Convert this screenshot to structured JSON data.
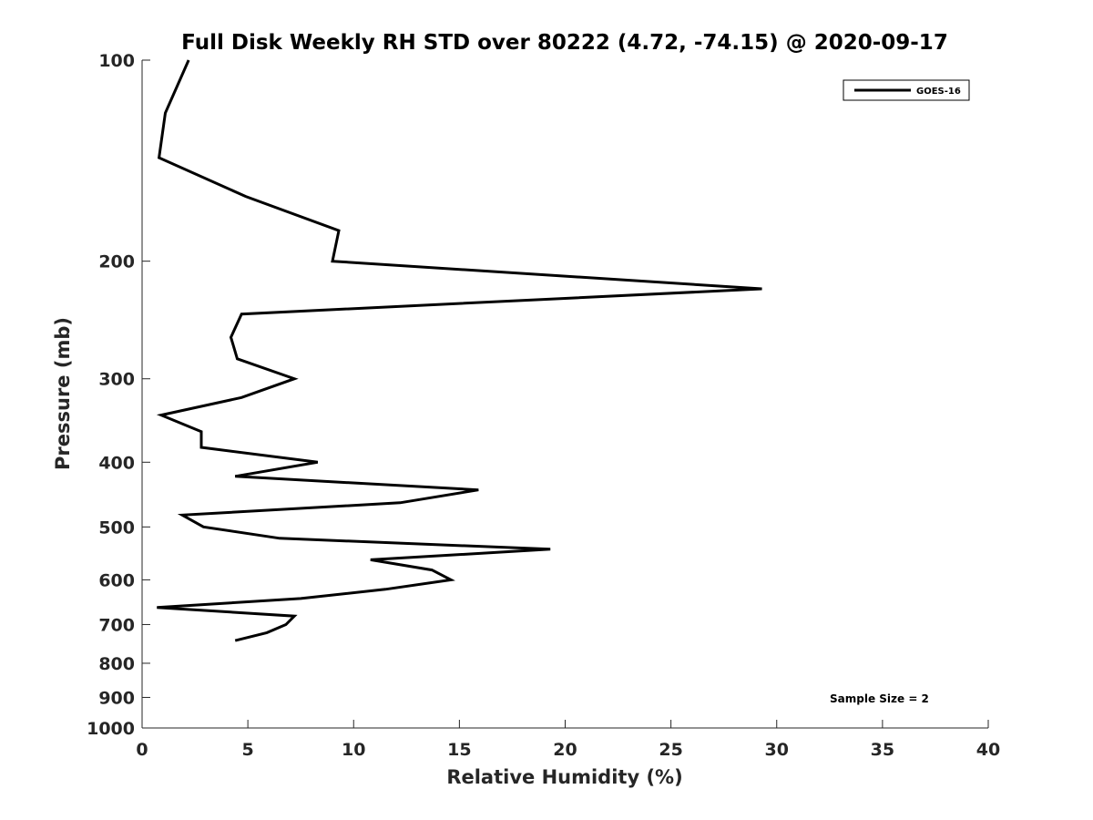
{
  "chart_data": {
    "type": "line",
    "title": "Full Disk Weekly RH STD over 80222 (4.72, -74.15) @ 2020-09-17",
    "xlabel": "Relative Humidity (%)",
    "ylabel": "Pressure (mb)",
    "xlim": [
      0,
      40
    ],
    "ylim": [
      100,
      1000
    ],
    "yscale": "log",
    "xticks": [
      "0",
      "5",
      "10",
      "15",
      "20",
      "25",
      "30",
      "35",
      "40"
    ],
    "yticks": [
      "100",
      "200",
      "300",
      "400",
      "500",
      "600",
      "700",
      "800",
      "900",
      "1000"
    ],
    "legend_position": "top-right",
    "annotation": "Sample Size = 2",
    "series": [
      {
        "name": "GOES-16",
        "color": "#000000",
        "points": [
          [
            2.2,
            100
          ],
          [
            1.1,
            120
          ],
          [
            0.8,
            140
          ],
          [
            4.9,
            160
          ],
          [
            9.3,
            180
          ],
          [
            9.0,
            200
          ],
          [
            29.3,
            220
          ],
          [
            4.7,
            240
          ],
          [
            4.2,
            260
          ],
          [
            4.5,
            280
          ],
          [
            7.2,
            300
          ],
          [
            4.7,
            320
          ],
          [
            0.9,
            340
          ],
          [
            2.8,
            360
          ],
          [
            2.8,
            380
          ],
          [
            8.3,
            400
          ],
          [
            4.4,
            420
          ],
          [
            15.9,
            440
          ],
          [
            12.2,
            460
          ],
          [
            1.9,
            480
          ],
          [
            2.9,
            500
          ],
          [
            6.5,
            520
          ],
          [
            19.3,
            540
          ],
          [
            10.8,
            560
          ],
          [
            13.7,
            580
          ],
          [
            14.6,
            600
          ],
          [
            11.5,
            620
          ],
          [
            7.5,
            640
          ],
          [
            0.7,
            660
          ],
          [
            7.2,
            680
          ],
          [
            6.8,
            700
          ],
          [
            5.9,
            720
          ],
          [
            4.4,
            740
          ]
        ]
      }
    ]
  }
}
